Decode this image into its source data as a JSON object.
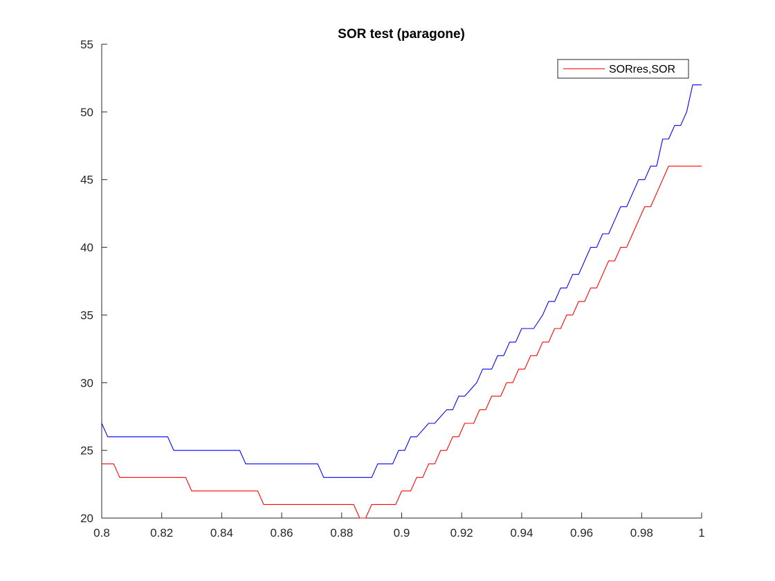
{
  "chart_data": {
    "type": "line",
    "title": "SOR test (paragone)",
    "xlabel": "",
    "ylabel": "",
    "xlim": [
      0.8,
      1.0
    ],
    "ylim": [
      20,
      55
    ],
    "x_ticks": [
      0.8,
      0.82,
      0.84,
      0.86,
      0.88,
      0.9,
      0.92,
      0.94,
      0.96,
      0.98,
      1.0
    ],
    "x_tick_labels": [
      "0.8",
      "0.82",
      "0.84",
      "0.86",
      "0.88",
      "0.9",
      "0.92",
      "0.94",
      "0.96",
      "0.98",
      "1"
    ],
    "y_ticks": [
      20,
      25,
      30,
      35,
      40,
      45,
      50,
      55
    ],
    "y_tick_labels": [
      "20",
      "25",
      "30",
      "35",
      "40",
      "45",
      "50",
      "55"
    ],
    "grid": false,
    "legend_placement": "top-right",
    "legend_entries": [
      "SORres,SOR"
    ],
    "series": [
      {
        "color": "#0000ff",
        "x": [
          0.8,
          0.802,
          0.822,
          0.824,
          0.846,
          0.848,
          0.872,
          0.874,
          0.89,
          0.892,
          0.897,
          0.899,
          0.901,
          0.903,
          0.905,
          0.909,
          0.911,
          0.915,
          0.917,
          0.919,
          0.921,
          0.925,
          0.927,
          0.93,
          0.932,
          0.934,
          0.936,
          0.938,
          0.94,
          0.942,
          0.944,
          0.947,
          0.949,
          0.951,
          0.953,
          0.955,
          0.957,
          0.959,
          0.961,
          0.963,
          0.965,
          0.967,
          0.969,
          0.971,
          0.973,
          0.975,
          0.977,
          0.979,
          0.981,
          0.983,
          0.985,
          0.987,
          0.989,
          0.991,
          0.993,
          0.995,
          0.997,
          0.999,
          1.0
        ],
        "y": [
          27,
          26,
          26,
          25,
          25,
          24,
          24,
          23,
          23,
          24,
          24,
          25,
          25,
          26,
          26,
          27,
          27,
          28,
          28,
          29,
          29,
          30,
          31,
          31,
          32,
          32,
          33,
          33,
          34,
          34,
          34,
          35,
          36,
          36,
          37,
          37,
          38,
          38,
          39,
          40,
          40,
          41,
          41,
          42,
          43,
          43,
          44,
          45,
          45,
          46,
          46,
          48,
          48,
          49,
          49,
          50,
          52,
          52,
          52
        ]
      },
      {
        "color": "#ff0000",
        "x": [
          0.8,
          0.804,
          0.806,
          0.828,
          0.83,
          0.852,
          0.854,
          0.884,
          0.886,
          0.888,
          0.89,
          0.898,
          0.9,
          0.903,
          0.905,
          0.907,
          0.909,
          0.911,
          0.913,
          0.915,
          0.917,
          0.919,
          0.921,
          0.924,
          0.926,
          0.928,
          0.93,
          0.933,
          0.935,
          0.937,
          0.939,
          0.941,
          0.943,
          0.945,
          0.947,
          0.949,
          0.951,
          0.953,
          0.955,
          0.957,
          0.959,
          0.961,
          0.963,
          0.965,
          0.967,
          0.969,
          0.971,
          0.973,
          0.975,
          0.977,
          0.979,
          0.981,
          0.983,
          0.985,
          0.987,
          0.989,
          0.991,
          0.993,
          0.995,
          0.997,
          0.999,
          1.0
        ],
        "y": [
          24,
          24,
          23,
          23,
          22,
          22,
          21,
          21,
          20,
          20,
          21,
          21,
          22,
          22,
          23,
          23,
          24,
          24,
          25,
          25,
          26,
          26,
          27,
          27,
          28,
          28,
          29,
          29,
          30,
          30,
          31,
          31,
          32,
          32,
          33,
          33,
          34,
          34,
          35,
          35,
          36,
          36,
          37,
          37,
          38,
          39,
          39,
          40,
          40,
          41,
          42,
          43,
          43,
          44,
          45,
          46,
          46,
          46,
          46,
          46,
          46,
          46
        ]
      }
    ]
  }
}
